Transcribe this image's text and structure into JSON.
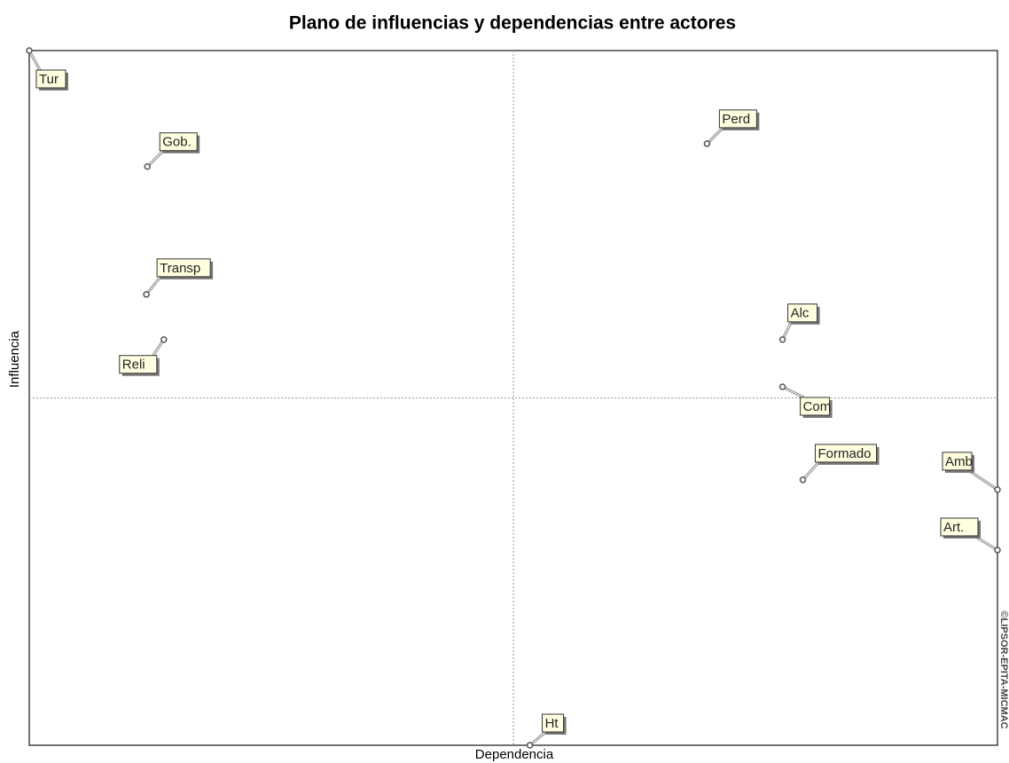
{
  "chart_data": {
    "type": "scatter",
    "title": "Plano de influencias y dependencias entre actores",
    "x_label": "Dependencia",
    "y_label": "Influencia",
    "credit": "©LIPSOR-EPITA-MICMAC",
    "xlim": [
      0,
      100
    ],
    "ylim": [
      0,
      100
    ],
    "crosshair": {
      "x": 50,
      "y": 50
    },
    "series": [
      {
        "name": "Actores",
        "color": "#555555",
        "labels": [
          "Tur",
          "Gob.",
          "Transp",
          "Reli",
          "Perd",
          "Alc",
          "Com",
          "Formado",
          "Amb",
          "Art.",
          "Ht"
        ],
        "x": [
          0,
          12.2,
          12.1,
          13.9,
          70.0,
          77.8,
          77.8,
          79.9,
          100,
          100,
          51.7
        ],
        "values": [
          100,
          83.3,
          64.9,
          58.4,
          86.6,
          58.4,
          51.6,
          38.2,
          36.8,
          28.1,
          0
        ]
      }
    ]
  }
}
